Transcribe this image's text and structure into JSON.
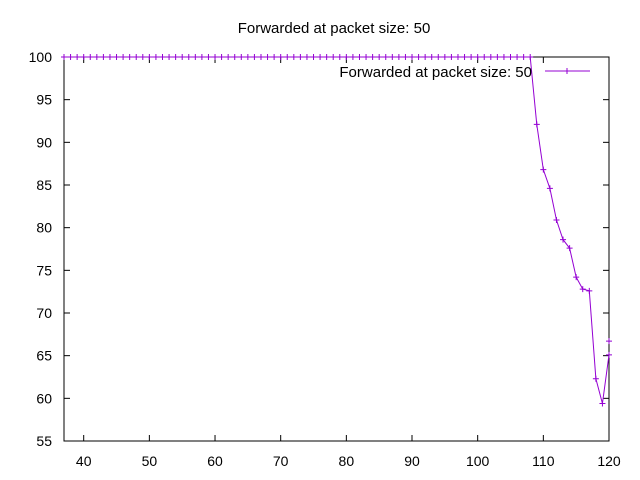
{
  "chart_data": {
    "type": "line",
    "title": "Forwarded at packet size: 50",
    "xlabel": "",
    "ylabel": "",
    "xlim": [
      37,
      120
    ],
    "ylim": [
      55,
      100
    ],
    "xticks": [
      40,
      50,
      60,
      70,
      80,
      90,
      100,
      110,
      120
    ],
    "yticks": [
      55,
      60,
      65,
      70,
      75,
      80,
      85,
      90,
      95,
      100
    ],
    "grid": false,
    "legend_position": "top-right",
    "series": [
      {
        "name": "Forwarded at packet size: 50",
        "color": "#9400d3",
        "marker": "plus",
        "x": [
          37,
          38,
          39,
          40,
          41,
          42,
          43,
          44,
          45,
          46,
          47,
          48,
          49,
          50,
          51,
          52,
          53,
          54,
          55,
          56,
          57,
          58,
          59,
          60,
          61,
          62,
          63,
          64,
          65,
          66,
          67,
          68,
          69,
          70,
          71,
          72,
          73,
          74,
          75,
          76,
          77,
          78,
          79,
          80,
          81,
          82,
          83,
          84,
          85,
          86,
          87,
          88,
          89,
          90,
          91,
          92,
          93,
          94,
          95,
          96,
          97,
          98,
          99,
          100,
          101,
          102,
          103,
          104,
          105,
          106,
          107,
          108,
          109,
          110,
          111,
          112,
          113,
          114,
          115,
          116,
          117,
          118,
          119,
          120
        ],
        "y": [
          100,
          100,
          100,
          100,
          100,
          100,
          100,
          100,
          100,
          100,
          100,
          100,
          100,
          100,
          100,
          100,
          100,
          100,
          100,
          100,
          100,
          100,
          100,
          100,
          100,
          100,
          100,
          100,
          100,
          100,
          100,
          100,
          100,
          100,
          100,
          100,
          100,
          100,
          100,
          100,
          100,
          100,
          100,
          100,
          100,
          100,
          100,
          100,
          100,
          100,
          100,
          100,
          100,
          100,
          100,
          100,
          100,
          100,
          100,
          100,
          100,
          100,
          100,
          100,
          100,
          100,
          100,
          100,
          100,
          100,
          100,
          100,
          92.1,
          86.8,
          84.6,
          80.9,
          78.6,
          77.6,
          74.2,
          72.8,
          72.6,
          62.3,
          59.4,
          65.1
        ]
      }
    ],
    "extra_points": [
      {
        "x": 120,
        "y": 66.7
      }
    ]
  }
}
